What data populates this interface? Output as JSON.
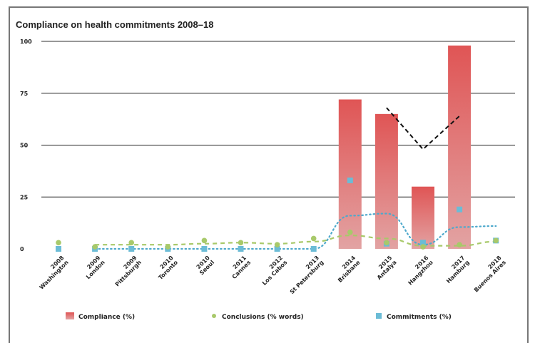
{
  "chart_data": {
    "type": "bar",
    "title": "Compliance on health commitments 2008–18",
    "xlabel": "",
    "ylabel": "",
    "ylim": [
      0,
      100
    ],
    "yticks": [
      0,
      25,
      50,
      75,
      100
    ],
    "grid": true,
    "legend_placement": "bottom",
    "categories": [
      "2008 Washington",
      "2009 London",
      "2009 Pittsburgh",
      "2010 Toronto",
      "2010 Seoul",
      "2011 Cannes",
      "2012 Los Cabos",
      "2013 St Petersburg",
      "2014 Brisbane",
      "2015 Antalya",
      "2016 Hangzhou",
      "2017 Hamburg",
      "2018 Buenos Aires"
    ],
    "category_lines": [
      [
        "2008",
        "Washington"
      ],
      [
        "2009",
        "London"
      ],
      [
        "2009",
        "Pittsburgh"
      ],
      [
        "2010",
        "Toronto"
      ],
      [
        "2010",
        "Seoul"
      ],
      [
        "2011",
        "Cannes"
      ],
      [
        "2012",
        "Los Cabos"
      ],
      [
        "2013",
        "St Petersburg"
      ],
      [
        "2014",
        "Brisbane"
      ],
      [
        "2015",
        "Antalya"
      ],
      [
        "2016",
        "Hangzhou"
      ],
      [
        "2017",
        "Hamburg"
      ],
      [
        "2018",
        "Buenos Aires"
      ]
    ],
    "series": [
      {
        "name": "Compliance (%)",
        "kind": "bar",
        "color": "#e05a5a",
        "values": [
          null,
          null,
          null,
          null,
          null,
          null,
          null,
          null,
          72,
          65,
          30,
          98,
          null
        ]
      },
      {
        "name": "Conclusions (% words)",
        "kind": "point",
        "color": "#a8c96a",
        "values": [
          3,
          1,
          3,
          1,
          4,
          3,
          2,
          5,
          8,
          3,
          1,
          2,
          4
        ]
      },
      {
        "name": "Commitments (%)",
        "kind": "square",
        "color": "#6bbcd6",
        "values": [
          0,
          0,
          0,
          0,
          0,
          0,
          0,
          0,
          33,
          2.5,
          3,
          19,
          4
        ]
      }
    ],
    "trendlines": [
      {
        "style": "dashed",
        "color": "#a8c96a",
        "values": [
          null,
          2,
          2,
          2,
          2.5,
          3,
          2.5,
          3.5,
          6.5,
          5,
          1.5,
          1.5,
          3.5
        ]
      },
      {
        "style": "dotted",
        "color": "#4ea9cc",
        "values": [
          null,
          0,
          0,
          0,
          0,
          0,
          0,
          0,
          16,
          17,
          2,
          10.5,
          11
        ]
      },
      {
        "style": "dashed",
        "color": "#111111",
        "values": [
          null,
          null,
          null,
          null,
          null,
          null,
          null,
          null,
          null,
          68,
          48,
          64,
          null
        ]
      }
    ]
  }
}
